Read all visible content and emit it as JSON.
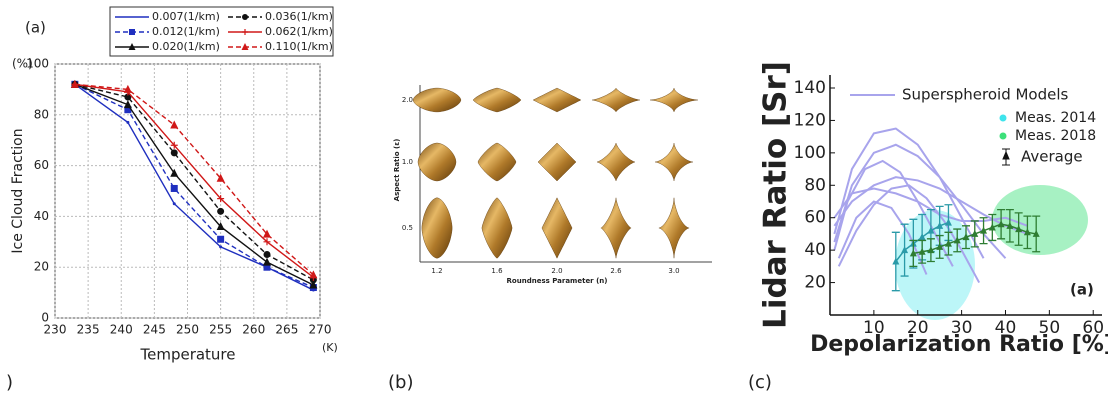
{
  "chart_data": [
    {
      "type": "line",
      "label": "(a)",
      "y_unit": "(%)",
      "y_label": "Ice Cloud Fraction",
      "x_label": "Temperature",
      "x_unit": "(K)",
      "x": [
        233,
        241,
        248,
        255,
        262,
        269
      ],
      "xlim": [
        230,
        270
      ],
      "xticks": [
        230,
        235,
        240,
        245,
        250,
        255,
        260,
        265,
        270
      ],
      "ylim": [
        0,
        100
      ],
      "yticks": [
        0,
        20,
        40,
        60,
        80,
        100
      ],
      "grid": true,
      "series": [
        {
          "name": "0.007(1/km)",
          "color": "#1f2fbf",
          "dash": false,
          "marker": "none",
          "values": [
            92,
            77,
            45,
            28,
            20,
            11
          ]
        },
        {
          "name": "0.012(1/km)",
          "color": "#1f2fbf",
          "dash": true,
          "marker": "square",
          "values": [
            92,
            82,
            51,
            31,
            20,
            12
          ]
        },
        {
          "name": "0.020(1/km)",
          "color": "#111111",
          "dash": false,
          "marker": "triangle",
          "values": [
            92,
            84,
            57,
            36,
            22,
            13
          ]
        },
        {
          "name": "0.036(1/km)",
          "color": "#111111",
          "dash": true,
          "marker": "circle",
          "values": [
            92,
            87,
            65,
            42,
            25,
            15
          ]
        },
        {
          "name": "0.062(1/km)",
          "color": "#d01818",
          "dash": false,
          "marker": "plus",
          "values": [
            92,
            89,
            68,
            47,
            30,
            16
          ]
        },
        {
          "name": "0.110(1/km)",
          "color": "#d01818",
          "dash": true,
          "marker": "triangle",
          "values": [
            92,
            90,
            76,
            55,
            33,
            17
          ]
        }
      ]
    },
    {
      "type": "scatter",
      "label": "(a)",
      "y_label": "Lidar Ratio [Sr]",
      "x_label": "Depolarization Ratio [%]",
      "xlim": [
        0,
        62
      ],
      "xticks": [
        10,
        20,
        30,
        40,
        50,
        60
      ],
      "ylim": [
        0,
        140
      ],
      "yticks": [
        20,
        40,
        60,
        80,
        100,
        120,
        140
      ],
      "models": {
        "name": "Superspheroid Models",
        "color": "#a8a4ec",
        "curves": [
          {
            "x": [
              1,
              5,
              10,
              15,
              20,
              25,
              30,
              35
            ],
            "values": [
              50,
              90,
              112,
              115,
              105,
              85,
              60,
              35
            ]
          },
          {
            "x": [
              1,
              5,
              10,
              15,
              20,
              25,
              30,
              35,
              40
            ],
            "values": [
              45,
              80,
              100,
              105,
              98,
              85,
              68,
              50,
              35
            ]
          },
          {
            "x": [
              1,
              4,
              8,
              12,
              16,
              20,
              24,
              28
            ],
            "values": [
              40,
              70,
              90,
              95,
              88,
              70,
              50,
              30
            ]
          },
          {
            "x": [
              1,
              5,
              10,
              15,
              20,
              25,
              30,
              35,
              40,
              45
            ],
            "values": [
              55,
              70,
              80,
              85,
              83,
              78,
              70,
              62,
              55,
              50
            ]
          },
          {
            "x": [
              2,
              6,
              10,
              14,
              18,
              22
            ],
            "values": [
              35,
              60,
              70,
              66,
              50,
              25
            ]
          },
          {
            "x": [
              1,
              5,
              10,
              15,
              20,
              25,
              30,
              35,
              40,
              45
            ],
            "values": [
              60,
              75,
              78,
              75,
              70,
              62,
              58,
              58,
              60,
              55
            ]
          },
          {
            "x": [
              2,
              6,
              10,
              14,
              18,
              22,
              26,
              30,
              34
            ],
            "values": [
              30,
              52,
              68,
              78,
              80,
              72,
              58,
              40,
              20
            ]
          }
        ]
      },
      "measurements": [
        {
          "name": "Meas. 2014",
          "color": "#3ee4ec"
        },
        {
          "name": "Meas. 2018",
          "color": "#3ce07a"
        }
      ],
      "average": {
        "name": "Average",
        "color": "#111111",
        "series": [
          {
            "color": "#2a9aa8",
            "x": [
              15,
              17,
              19,
              21,
              23,
              25,
              27
            ],
            "values": [
              33,
              40,
              44,
              48,
              52,
              55,
              57
            ],
            "errors": [
              18,
              16,
              15,
              14,
              13,
              12,
              11
            ]
          },
          {
            "color": "#2e7d32",
            "x": [
              19,
              21,
              23,
              25,
              27,
              29,
              31,
              33,
              35,
              37,
              39,
              41,
              43,
              45,
              47
            ],
            "values": [
              38,
              39,
              40,
              42,
              44,
              46,
              48,
              50,
              52,
              54,
              56,
              55,
              53,
              51,
              50
            ],
            "errors": [
              8,
              7,
              7,
              7,
              7,
              7,
              7,
              8,
              8,
              8,
              9,
              10,
              10,
              10,
              11
            ]
          }
        ]
      }
    }
  ],
  "diagram": {
    "y_label": "Aspect Ratio (ε)",
    "x_label": "Roundness Parameter (n)",
    "y_ticks": [
      {
        "value": 2,
        "label": "2.0"
      },
      {
        "value": 1,
        "label": "1.0"
      },
      0.5
    ],
    "x_ticks": [
      1.2,
      1.6,
      {
        "value": 2,
        "label": "2.0"
      },
      2.6,
      {
        "value": 3,
        "label": "3.0"
      }
    ]
  },
  "captions": [
    ")",
    "(b)",
    "(c)"
  ]
}
